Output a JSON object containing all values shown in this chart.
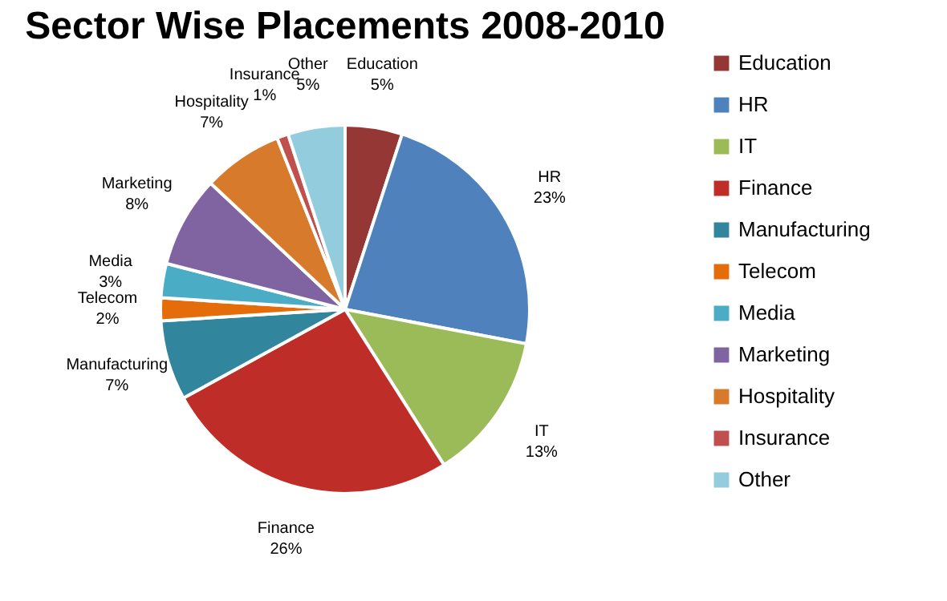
{
  "chart_data": {
    "type": "pie",
    "title": "Sector Wise Placements 2008-2010",
    "categories": [
      "Education",
      "HR",
      "IT",
      "Finance",
      "Manufacturing",
      "Telecom",
      "Media",
      "Marketing",
      "Hospitality",
      "Insurance",
      "Other"
    ],
    "values": [
      5,
      23,
      13,
      26,
      7,
      2,
      3,
      8,
      7,
      1,
      5
    ],
    "value_labels": [
      "5%",
      "23%",
      "13%",
      "26%",
      "7%",
      "2%",
      "3%",
      "8%",
      "7%",
      "1%",
      "5%"
    ],
    "colors": [
      "#953735",
      "#4f81bd",
      "#9bbb59",
      "#be2d28",
      "#31859c",
      "#e46c0a",
      "#4bacc6",
      "#8064a2",
      "#d87a2c",
      "#c0504d",
      "#93cddd"
    ],
    "legend": "right"
  }
}
